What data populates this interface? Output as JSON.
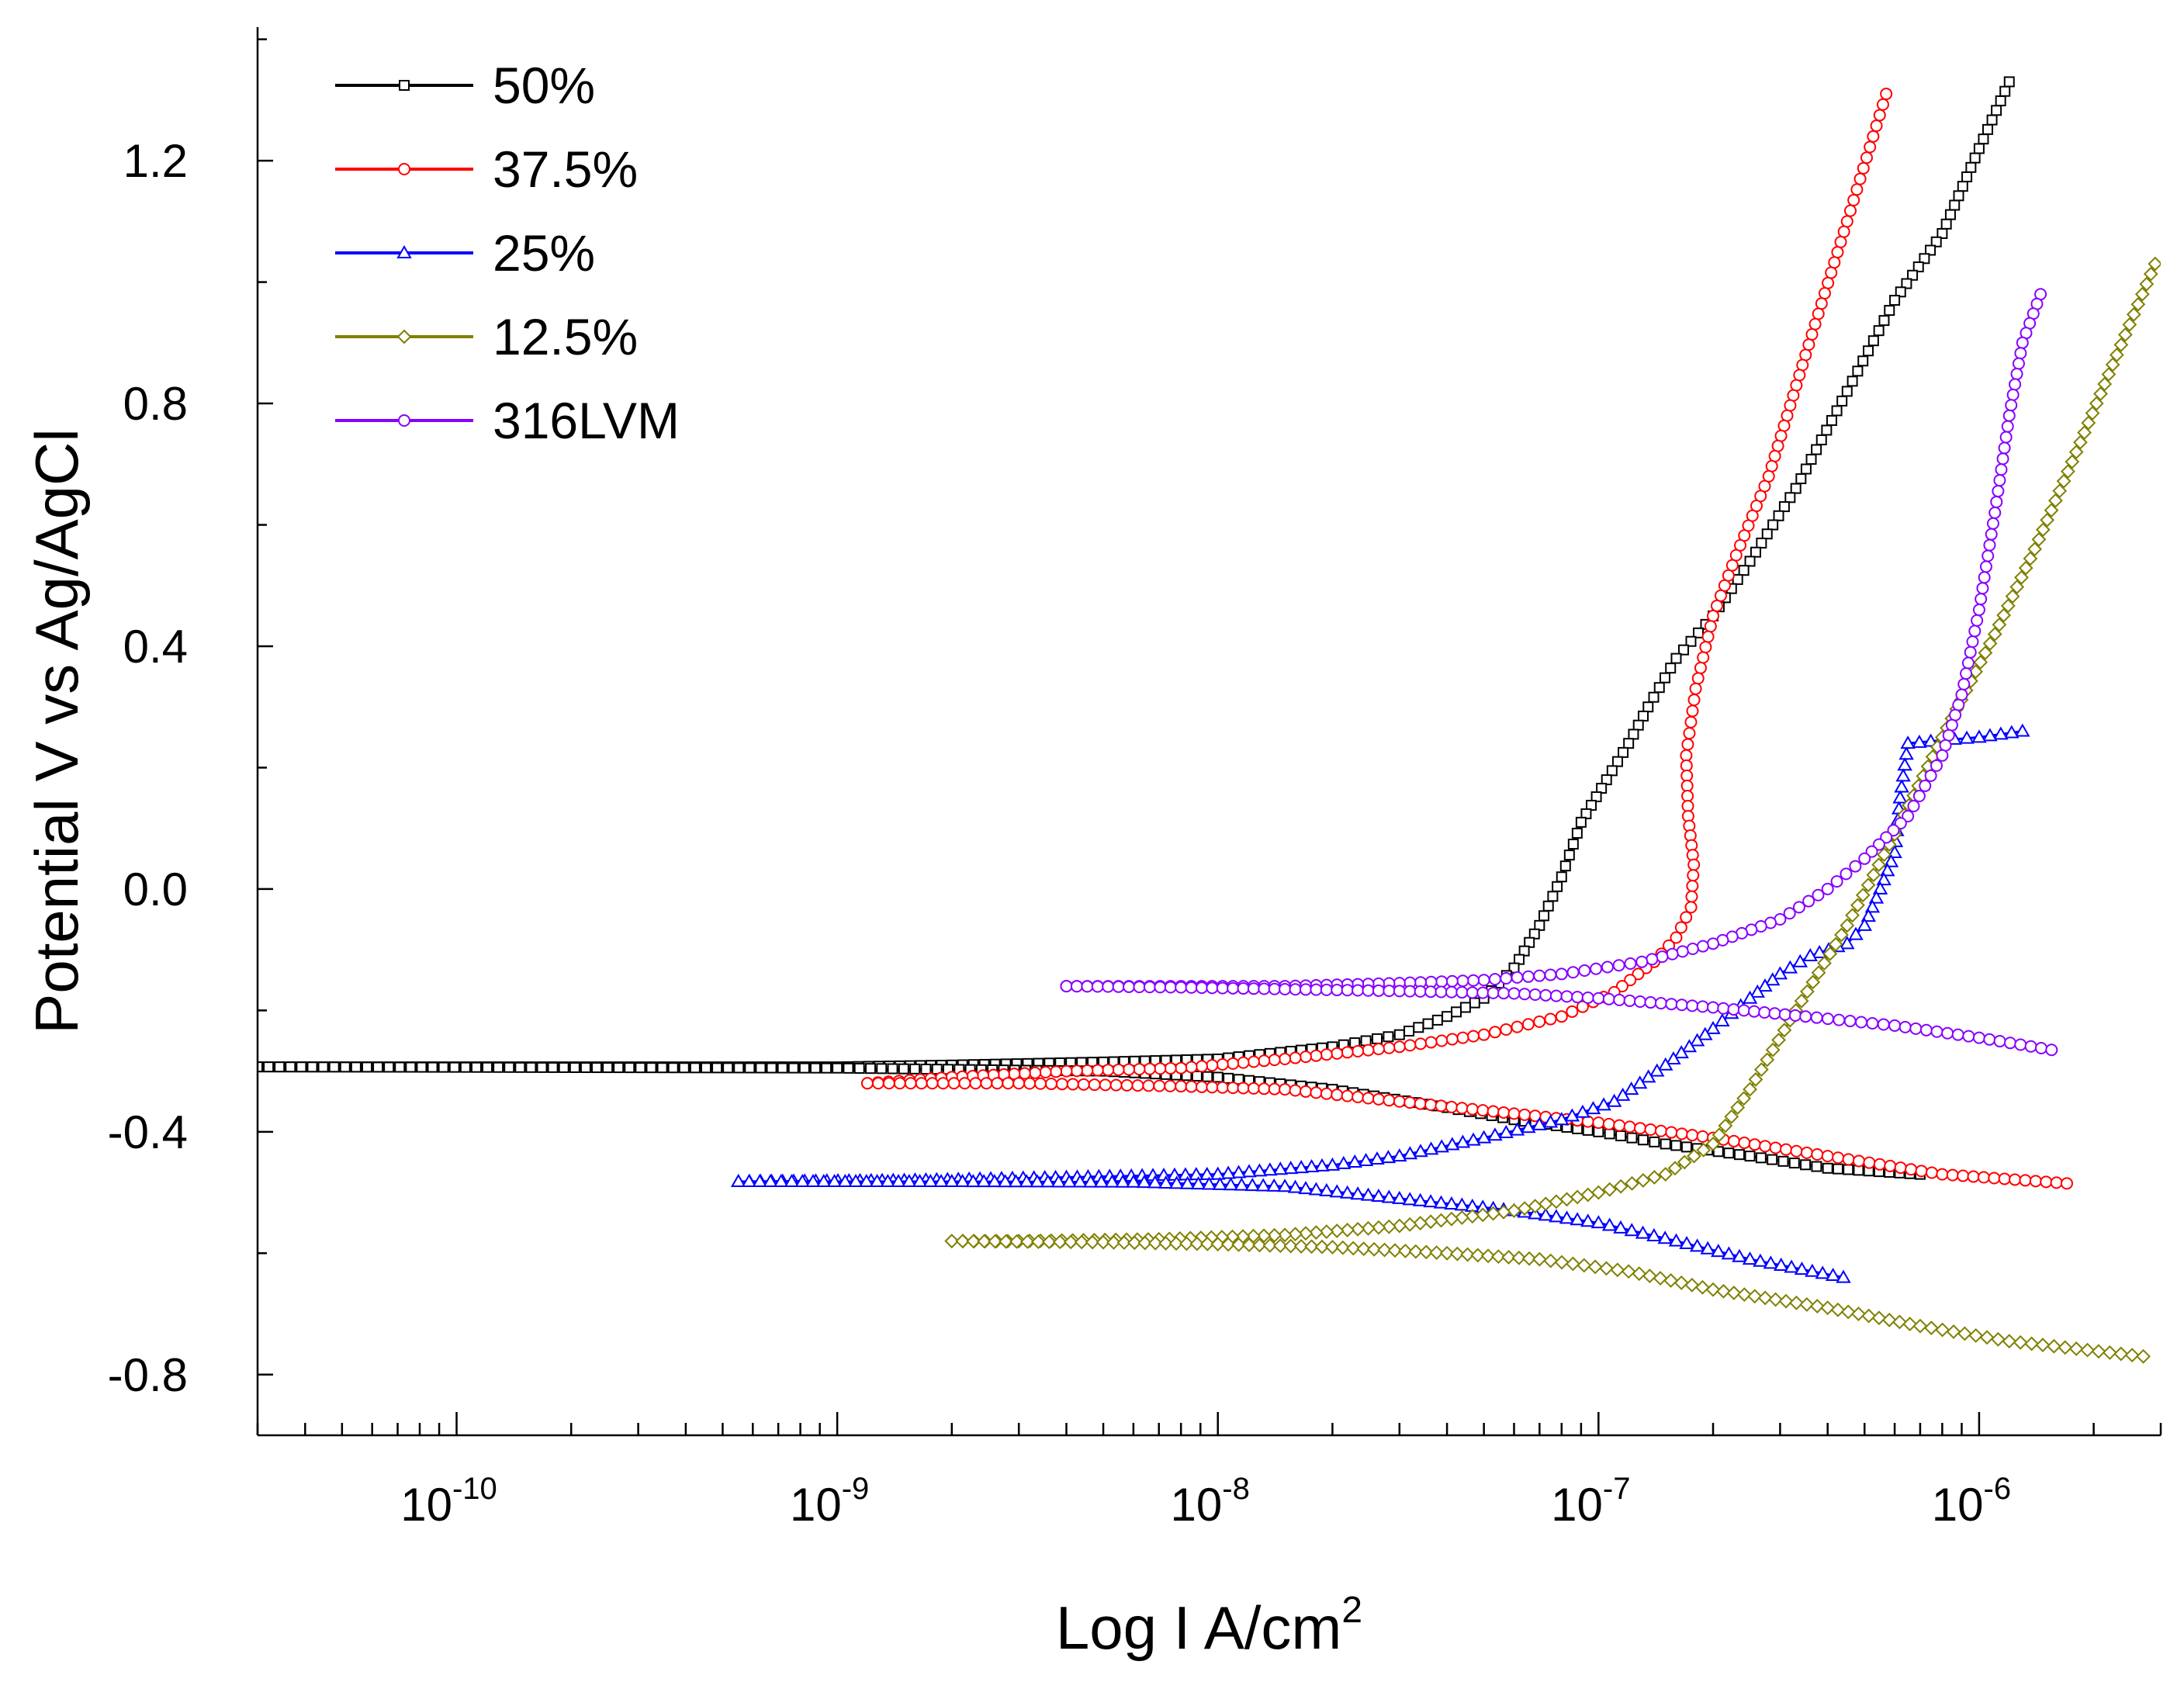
{
  "chart_data": {
    "type": "line",
    "title": "",
    "xlabel": "Log I A/cm",
    "xlabel_superscript": "2",
    "ylabel": "Potential V vs Ag/AgCl",
    "x_scale": "log",
    "xlim": [
      3e-11,
      3e-06
    ],
    "ylim": [
      -0.9,
      1.42
    ],
    "x_ticks": [
      {
        "value": 1e-10,
        "base": "10",
        "exp": "-10"
      },
      {
        "value": 1e-09,
        "base": "10",
        "exp": "-9"
      },
      {
        "value": 1e-08,
        "base": "10",
        "exp": "-8"
      },
      {
        "value": 1e-07,
        "base": "10",
        "exp": "-7"
      },
      {
        "value": 1e-06,
        "base": "10",
        "exp": "-6"
      }
    ],
    "y_ticks": [
      {
        "value": -0.8,
        "label": "-0.8"
      },
      {
        "value": -0.4,
        "label": "-0.4"
      },
      {
        "value": 0.0,
        "label": "0.0"
      },
      {
        "value": 0.4,
        "label": "0.4"
      },
      {
        "value": 0.8,
        "label": "0.8"
      },
      {
        "value": 1.2,
        "label": "1.2"
      }
    ],
    "legend_position": "top-left",
    "series": [
      {
        "name": "50%",
        "color": "#000000",
        "marker": "square",
        "cathodic": [
          [
            1.2e-06,
            1.33
          ],
          [
            1e-06,
            1.22
          ],
          [
            8e-07,
            1.08
          ],
          [
            6e-07,
            0.97
          ],
          [
            4.5e-07,
            0.82
          ],
          [
            3.3e-07,
            0.66
          ],
          [
            2.5e-07,
            0.54
          ],
          [
            2e-07,
            0.45
          ],
          [
            1.6e-07,
            0.38
          ],
          [
            1.35e-07,
            0.3
          ],
          [
            1.2e-07,
            0.24
          ],
          [
            1.05e-07,
            0.18
          ],
          [
            9e-08,
            0.11
          ],
          [
            8e-08,
            0.02
          ],
          [
            7e-08,
            -0.06
          ],
          [
            6e-08,
            -0.13
          ],
          [
            5e-08,
            -0.18
          ],
          [
            4e-08,
            -0.21
          ],
          [
            3e-08,
            -0.24
          ],
          [
            2e-08,
            -0.26
          ],
          [
            1e-08,
            -0.28
          ],
          [
            5e-09,
            -0.285
          ],
          [
            2e-09,
            -0.29
          ],
          [
            1e-09,
            -0.293
          ],
          [
            3e-11,
            -0.293
          ]
        ],
        "anodic": [
          [
            3e-11,
            -0.293
          ],
          [
            1e-09,
            -0.295
          ],
          [
            5e-09,
            -0.3
          ],
          [
            1e-08,
            -0.31
          ],
          [
            2e-08,
            -0.33
          ],
          [
            4e-08,
            -0.36
          ],
          [
            6e-08,
            -0.38
          ],
          [
            1e-07,
            -0.4
          ],
          [
            1.5e-07,
            -0.42
          ],
          [
            2.5e-07,
            -0.44
          ],
          [
            4e-07,
            -0.46
          ],
          [
            7e-07,
            -0.47
          ]
        ]
      },
      {
        "name": "37.5%",
        "color": "#ff0000",
        "marker": "circle",
        "cathodic": [
          [
            5.7e-07,
            1.31
          ],
          [
            4.5e-07,
            1.1
          ],
          [
            3.5e-07,
            0.88
          ],
          [
            2.8e-07,
            0.68
          ],
          [
            2.3e-07,
            0.55
          ],
          [
            2e-07,
            0.45
          ],
          [
            1.8e-07,
            0.33
          ],
          [
            1.7e-07,
            0.22
          ],
          [
            1.72e-07,
            0.12
          ],
          [
            1.78e-07,
            0.04
          ],
          [
            1.75e-07,
            -0.03
          ],
          [
            1.6e-07,
            -0.08
          ],
          [
            1.4e-07,
            -0.12
          ],
          [
            1.1e-07,
            -0.17
          ],
          [
            8e-08,
            -0.21
          ],
          [
            5e-08,
            -0.24
          ],
          [
            3e-08,
            -0.26
          ],
          [
            1.5e-08,
            -0.28
          ],
          [
            8e-09,
            -0.295
          ],
          [
            4e-09,
            -0.3
          ],
          [
            2e-09,
            -0.31
          ],
          [
            1.2e-09,
            -0.32
          ]
        ],
        "anodic": [
          [
            1.2e-09,
            -0.32
          ],
          [
            3e-09,
            -0.32
          ],
          [
            8e-09,
            -0.325
          ],
          [
            1.5e-08,
            -0.33
          ],
          [
            3e-08,
            -0.35
          ],
          [
            6e-08,
            -0.37
          ],
          [
            1e-07,
            -0.385
          ],
          [
            2e-07,
            -0.41
          ],
          [
            4e-07,
            -0.44
          ],
          [
            8e-07,
            -0.47
          ],
          [
            1.7e-06,
            -0.485
          ]
        ]
      },
      {
        "name": "25%",
        "color": "#0000ff",
        "marker": "triangle",
        "cathodic": [
          [
            1.3e-06,
            0.26
          ],
          [
            1e-06,
            0.25
          ],
          [
            8e-07,
            0.245
          ],
          [
            6.5e-07,
            0.24
          ],
          [
            6.2e-07,
            0.15
          ],
          [
            6e-07,
            0.06
          ],
          [
            5.5e-07,
            0.0
          ],
          [
            5e-07,
            -0.06
          ],
          [
            4.5e-07,
            -0.09
          ],
          [
            3.6e-07,
            -0.11
          ],
          [
            3e-07,
            -0.14
          ],
          [
            2.5e-07,
            -0.18
          ],
          [
            2e-07,
            -0.23
          ],
          [
            1.5e-07,
            -0.29
          ],
          [
            1.1e-07,
            -0.35
          ],
          [
            8e-08,
            -0.38
          ],
          [
            5e-08,
            -0.41
          ],
          [
            3e-08,
            -0.44
          ],
          [
            2e-08,
            -0.455
          ],
          [
            1e-08,
            -0.47
          ],
          [
            4e-09,
            -0.475
          ],
          [
            1.5e-09,
            -0.48
          ],
          [
            5.5e-10,
            -0.482
          ]
        ],
        "anodic": [
          [
            5.5e-10,
            -0.482
          ],
          [
            2e-09,
            -0.482
          ],
          [
            6e-09,
            -0.483
          ],
          [
            1.5e-08,
            -0.49
          ],
          [
            3e-08,
            -0.51
          ],
          [
            6e-08,
            -0.53
          ],
          [
            1e-07,
            -0.55
          ],
          [
            1.6e-07,
            -0.58
          ],
          [
            2.5e-07,
            -0.61
          ],
          [
            4.4e-07,
            -0.64
          ]
        ]
      },
      {
        "name": "12.5%",
        "color": "#808000",
        "marker": "diamond",
        "cathodic": [
          [
            2.9e-06,
            1.03
          ],
          [
            2.3e-06,
            0.88
          ],
          [
            1.8e-06,
            0.72
          ],
          [
            1.4e-06,
            0.56
          ],
          [
            1.1e-06,
            0.42
          ],
          [
            8e-07,
            0.25
          ],
          [
            6e-07,
            0.09
          ],
          [
            4.5e-07,
            -0.06
          ],
          [
            3.3e-07,
            -0.2
          ],
          [
            2.5e-07,
            -0.33
          ],
          [
            2e-07,
            -0.42
          ],
          [
            1.5e-07,
            -0.47
          ],
          [
            1e-07,
            -0.5
          ],
          [
            6e-08,
            -0.53
          ],
          [
            3e-08,
            -0.555
          ],
          [
            1.5e-08,
            -0.57
          ],
          [
            7e-09,
            -0.577
          ],
          [
            3e-09,
            -0.58
          ],
          [
            2e-09,
            -0.58
          ]
        ],
        "anodic": [
          [
            2e-09,
            -0.58
          ],
          [
            5e-09,
            -0.582
          ],
          [
            1e-08,
            -0.585
          ],
          [
            2e-08,
            -0.59
          ],
          [
            4e-08,
            -0.6
          ],
          [
            7e-08,
            -0.61
          ],
          [
            1.2e-07,
            -0.63
          ],
          [
            2e-07,
            -0.66
          ],
          [
            4e-07,
            -0.69
          ],
          [
            7e-07,
            -0.72
          ],
          [
            1.2e-06,
            -0.745
          ],
          [
            2.7e-06,
            -0.77
          ]
        ]
      },
      {
        "name": "316LVM",
        "color": "#8800ff",
        "marker": "circle",
        "cathodic": [
          [
            1.45e-06,
            0.98
          ],
          [
            1.3e-06,
            0.9
          ],
          [
            1.2e-06,
            0.78
          ],
          [
            1.1e-06,
            0.62
          ],
          [
            1e-06,
            0.46
          ],
          [
            9e-07,
            0.32
          ],
          [
            8e-07,
            0.22
          ],
          [
            6.5e-07,
            0.12
          ],
          [
            5e-07,
            0.05
          ],
          [
            4e-07,
            0.0
          ],
          [
            3e-07,
            -0.05
          ],
          [
            2e-07,
            -0.09
          ],
          [
            1.3e-07,
            -0.12
          ],
          [
            8e-08,
            -0.14
          ],
          [
            5e-08,
            -0.15
          ],
          [
            3e-08,
            -0.155
          ],
          [
            1.5e-08,
            -0.16
          ],
          [
            8e-09,
            -0.16
          ],
          [
            4e-09,
            -0.16
          ]
        ],
        "anodic": [
          [
            4e-09,
            -0.16
          ],
          [
            8e-09,
            -0.162
          ],
          [
            1.5e-08,
            -0.165
          ],
          [
            3e-08,
            -0.168
          ],
          [
            6e-08,
            -0.172
          ],
          [
            1e-07,
            -0.18
          ],
          [
            2e-07,
            -0.195
          ],
          [
            3.5e-07,
            -0.21
          ],
          [
            6e-07,
            -0.225
          ],
          [
            1e-06,
            -0.245
          ],
          [
            1.55e-06,
            -0.265
          ]
        ]
      }
    ]
  }
}
